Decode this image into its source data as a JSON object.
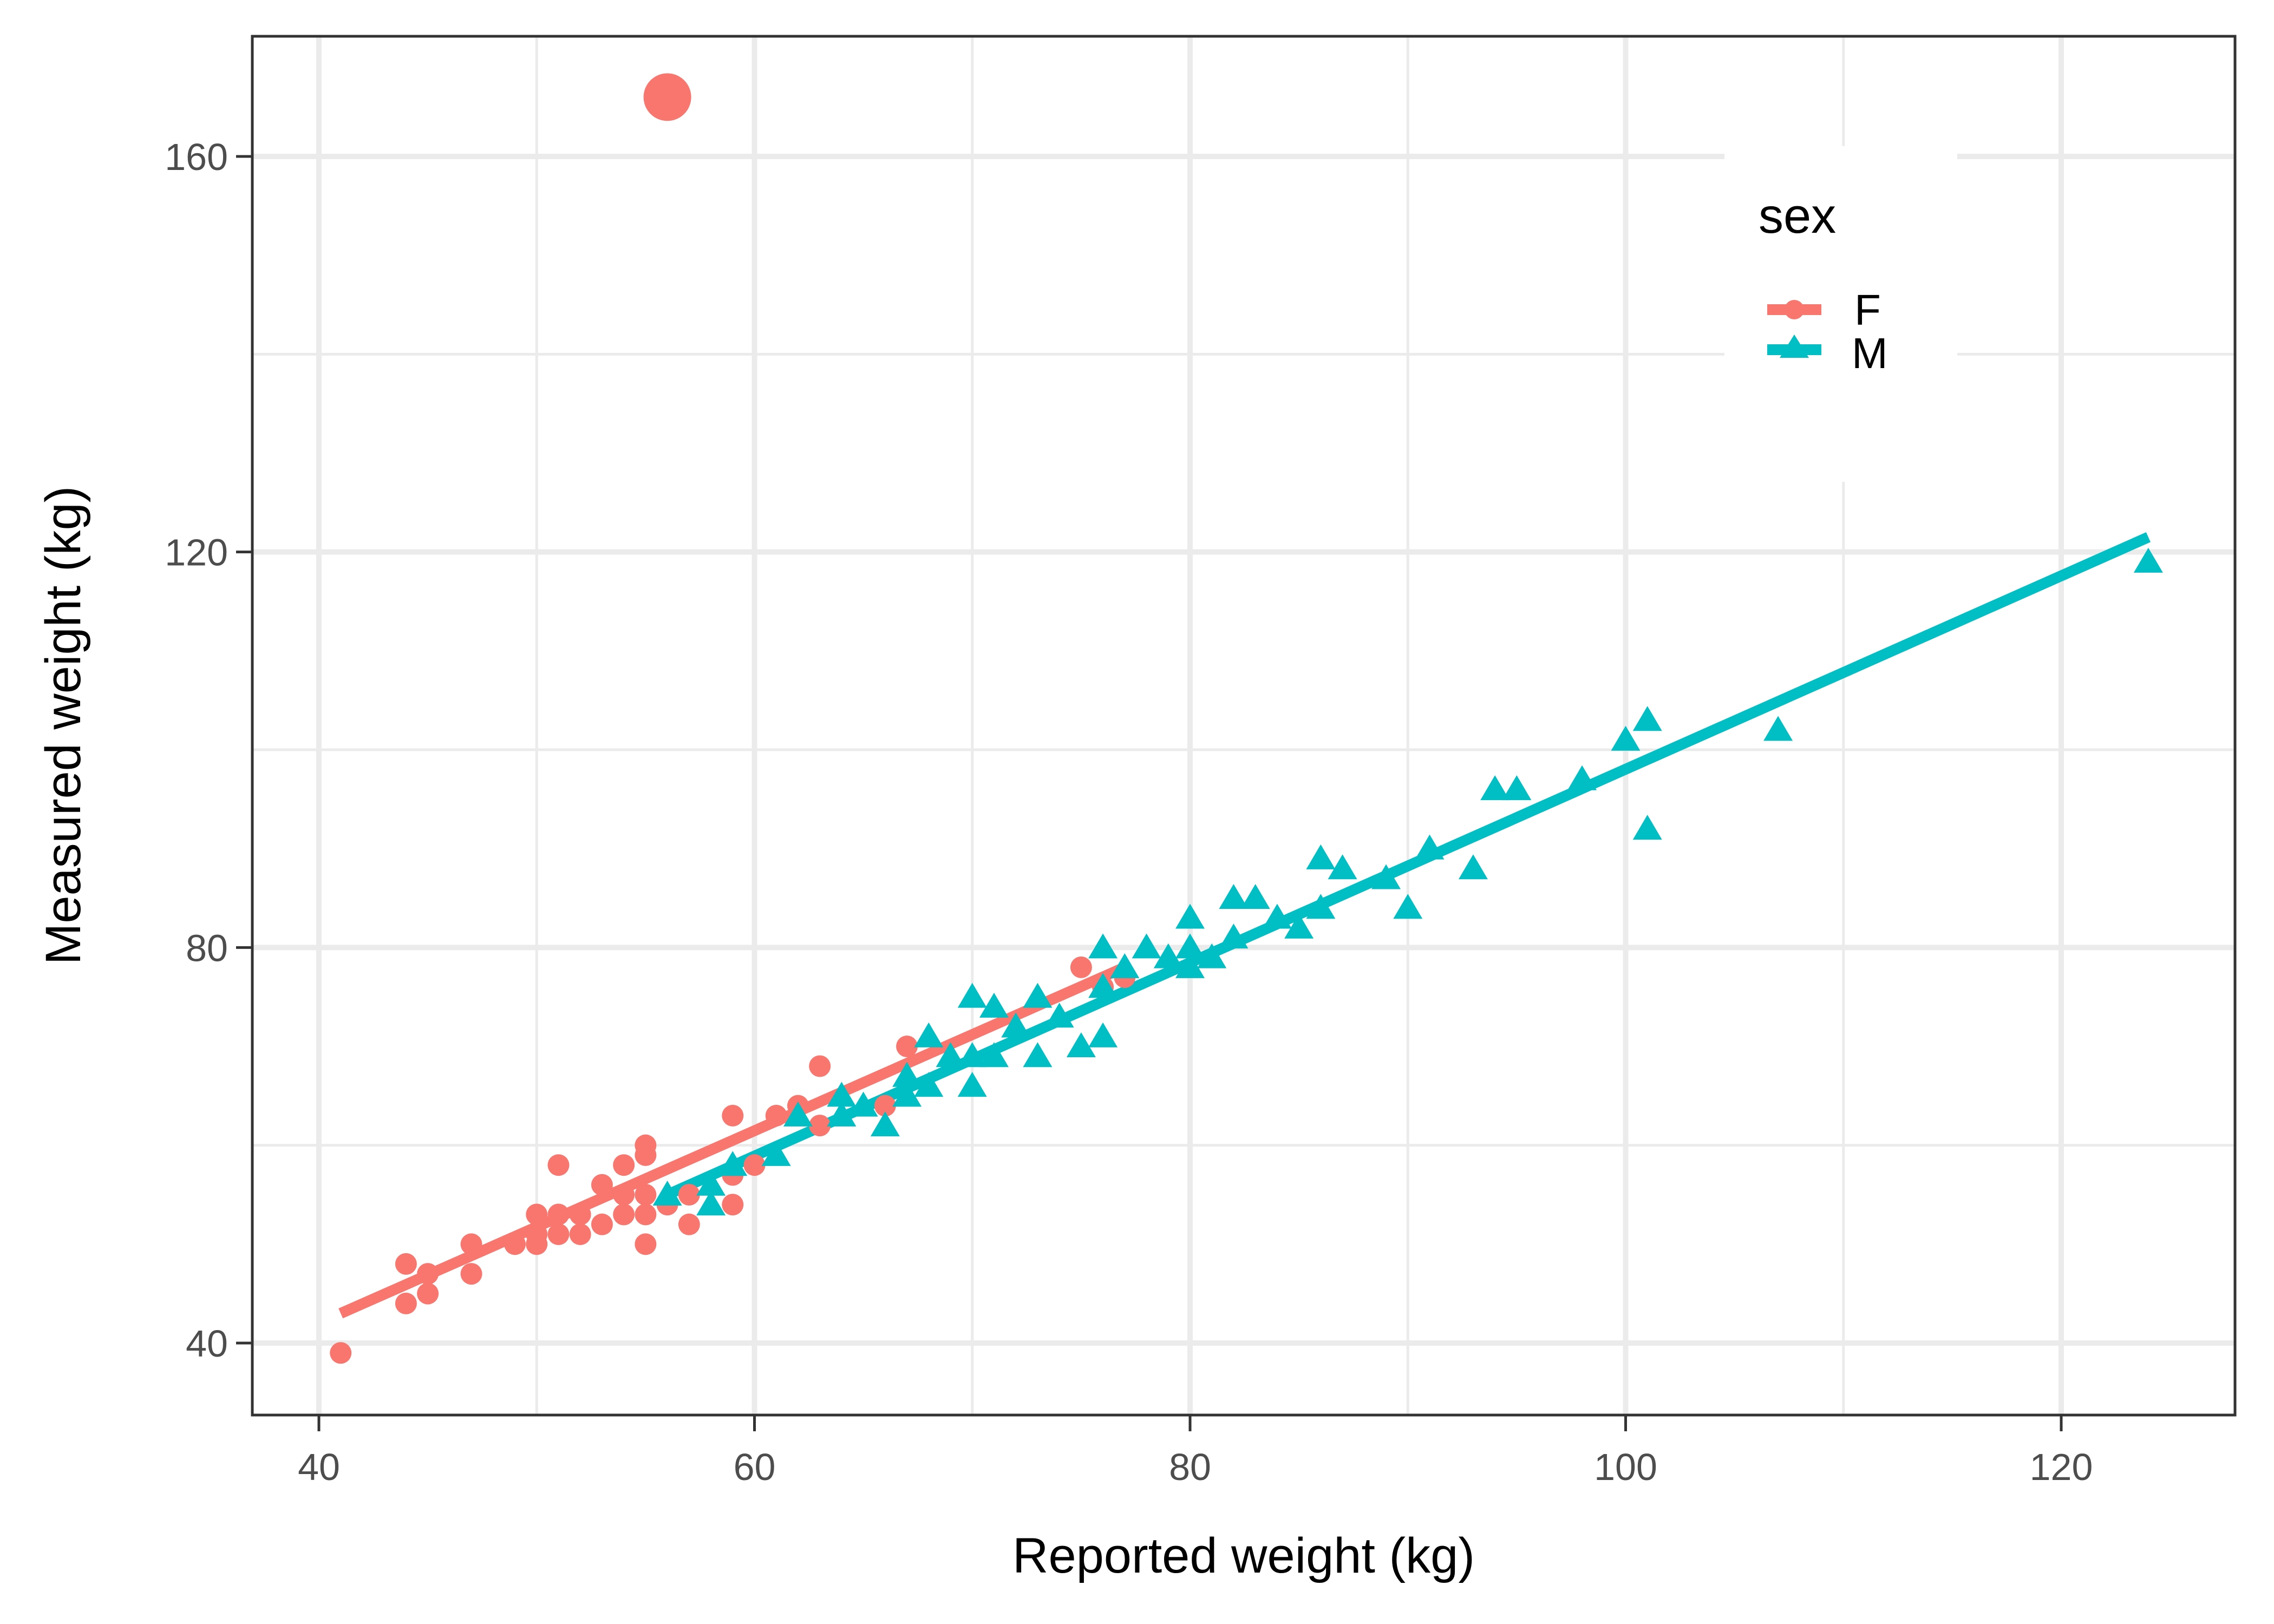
{
  "chart_data": {
    "type": "scatter",
    "title": "",
    "xlabel": "Reported weight (kg)",
    "ylabel": "Measured weight (kg)",
    "xlim": [
      37,
      128
    ],
    "ylim": [
      32,
      172
    ],
    "x_ticks": [
      40,
      60,
      80,
      100,
      120
    ],
    "y_ticks": [
      40,
      80,
      120,
      160
    ],
    "x_minor_grid": [
      50,
      70,
      90,
      110
    ],
    "y_minor_grid": [
      60,
      100,
      140
    ],
    "grid": true,
    "legend": {
      "title": "sex",
      "position": "top-right-inside",
      "entries": [
        {
          "label": "F",
          "shape": "circle",
          "color": "#F8766D"
        },
        {
          "label": "M",
          "shape": "triangle",
          "color": "#00BFC4"
        }
      ]
    },
    "series": [
      {
        "name": "F",
        "color": "#F8766D",
        "shape": "circle",
        "points": [
          [
            41,
            39
          ],
          [
            44,
            48
          ],
          [
            44,
            44
          ],
          [
            45,
            47
          ],
          [
            45,
            45
          ],
          [
            47,
            50
          ],
          [
            47,
            47
          ],
          [
            49,
            50
          ],
          [
            50,
            53
          ],
          [
            50,
            50
          ],
          [
            50,
            51
          ],
          [
            51,
            58
          ],
          [
            51,
            53
          ],
          [
            51,
            51
          ],
          [
            52,
            51
          ],
          [
            52,
            53
          ],
          [
            53,
            56
          ],
          [
            53,
            52
          ],
          [
            54,
            58
          ],
          [
            54,
            53
          ],
          [
            54,
            55
          ],
          [
            55,
            60
          ],
          [
            55,
            50
          ],
          [
            55,
            59
          ],
          [
            55,
            53
          ],
          [
            55,
            55
          ],
          [
            56,
            54
          ],
          [
            57,
            52
          ],
          [
            57,
            55
          ],
          [
            59,
            63
          ],
          [
            59,
            57
          ],
          [
            59,
            54
          ],
          [
            60,
            58
          ],
          [
            61,
            63
          ],
          [
            62,
            64
          ],
          [
            63,
            68
          ],
          [
            63,
            62
          ],
          [
            66,
            64
          ],
          [
            67,
            70
          ],
          [
            75,
            78
          ],
          [
            76,
            76
          ],
          [
            77,
            77
          ]
        ],
        "outliers": [
          [
            56,
            166
          ]
        ],
        "fit_line": [
          [
            41,
            43
          ],
          [
            77,
            78
          ]
        ]
      },
      {
        "name": "M",
        "color": "#00BFC4",
        "shape": "triangle",
        "points": [
          [
            56,
            55
          ],
          [
            58,
            54
          ],
          [
            58,
            56
          ],
          [
            59,
            58
          ],
          [
            61,
            59
          ],
          [
            62,
            63
          ],
          [
            64,
            63
          ],
          [
            64,
            65
          ],
          [
            65,
            64
          ],
          [
            66,
            62
          ],
          [
            67,
            65
          ],
          [
            67,
            67
          ],
          [
            68,
            71
          ],
          [
            68,
            66
          ],
          [
            69,
            69
          ],
          [
            70,
            75
          ],
          [
            70,
            66
          ],
          [
            70,
            69
          ],
          [
            71,
            74
          ],
          [
            71,
            69
          ],
          [
            72,
            72
          ],
          [
            73,
            75
          ],
          [
            73,
            69
          ],
          [
            74,
            73
          ],
          [
            75,
            70
          ],
          [
            76,
            80
          ],
          [
            76,
            71
          ],
          [
            76,
            76
          ],
          [
            77,
            78
          ],
          [
            78,
            80
          ],
          [
            79,
            79
          ],
          [
            80,
            83
          ],
          [
            80,
            78
          ],
          [
            80,
            80
          ],
          [
            81,
            79
          ],
          [
            82,
            81
          ],
          [
            82,
            85
          ],
          [
            83,
            85
          ],
          [
            84,
            83
          ],
          [
            85,
            82
          ],
          [
            86,
            89
          ],
          [
            86,
            84
          ],
          [
            87,
            88
          ],
          [
            89,
            87
          ],
          [
            90,
            84
          ],
          [
            91,
            90
          ],
          [
            93,
            88
          ],
          [
            94,
            96
          ],
          [
            95,
            96
          ],
          [
            98,
            97
          ],
          [
            100,
            101
          ],
          [
            101,
            103
          ],
          [
            101,
            92
          ],
          [
            107,
            102
          ],
          [
            124,
            119
          ]
        ],
        "fit_line": [
          [
            56,
            55
          ],
          [
            124,
            121.5
          ]
        ]
      }
    ]
  }
}
